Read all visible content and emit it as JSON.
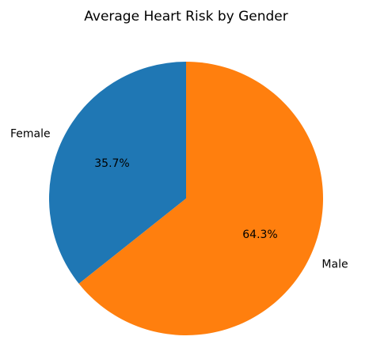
{
  "chart_data": {
    "type": "pie",
    "title": "Average Heart Risk by Gender",
    "labels": [
      "Female",
      "Male"
    ],
    "values": [
      35.7,
      64.3
    ],
    "percent_labels": [
      "35.7%",
      "64.3%"
    ],
    "colors": [
      "#1f77b4",
      "#ff7f0e"
    ],
    "start_angle_deg": 90,
    "direction": "counterclockwise"
  }
}
